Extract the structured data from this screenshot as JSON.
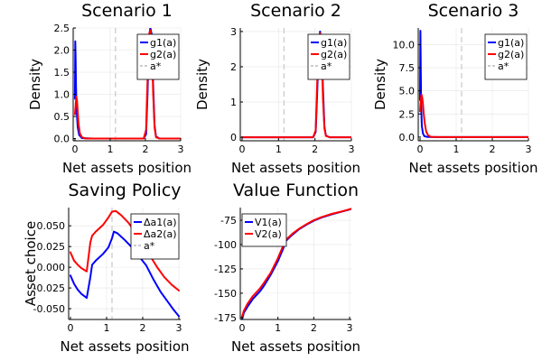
{
  "figure": {
    "background": "#ffffff"
  },
  "chart_data": [
    {
      "id": "p1",
      "type": "line",
      "title": "Scenario 1",
      "xlabel": "Net assets position",
      "ylabel": "Density",
      "xlim": [
        -0.05,
        3.0
      ],
      "ylim": [
        -0.05,
        2.5
      ],
      "xticks": [
        0,
        1,
        2,
        3
      ],
      "xticklabels": [
        "0",
        "1",
        "2",
        "3"
      ],
      "yticks": [
        0.0,
        0.5,
        1.0,
        1.5,
        2.0,
        2.5
      ],
      "yticklabels": [
        "0.0",
        "0.5",
        "1.0",
        "1.5",
        "2.0",
        "2.5"
      ],
      "grid": true,
      "legend_position": "top-right",
      "vline": {
        "label": "a*",
        "x": 1.15,
        "color": "#cccccc",
        "dashed": true
      },
      "series": [
        {
          "name": "g1(a)",
          "color": "#0000ff",
          "x": [
            0.0,
            0.01,
            0.02,
            0.03,
            0.05,
            0.08,
            0.12,
            0.2,
            0.5,
            1.0,
            1.5,
            1.95,
            2.02,
            2.06,
            2.1,
            2.14,
            2.18,
            2.22,
            2.26,
            2.3,
            2.4,
            2.6,
            3.0
          ],
          "y": [
            0.9,
            2.2,
            1.8,
            1.2,
            0.6,
            0.25,
            0.08,
            0.01,
            0.0,
            0.0,
            0.0,
            0.0,
            0.1,
            1.0,
            2.3,
            2.5,
            2.35,
            1.2,
            0.3,
            0.05,
            0.0,
            0.0,
            0.0
          ]
        },
        {
          "name": "g2(a)",
          "color": "#ff0000",
          "x": [
            0.0,
            0.02,
            0.04,
            0.06,
            0.08,
            0.1,
            0.14,
            0.2,
            0.3,
            0.5,
            1.0,
            1.5,
            1.95,
            2.02,
            2.06,
            2.1,
            2.14,
            2.18,
            2.22,
            2.26,
            2.3,
            2.4,
            2.6,
            3.0
          ],
          "y": [
            0.55,
            0.75,
            0.95,
            0.85,
            0.6,
            0.35,
            0.12,
            0.03,
            0.0,
            0.0,
            0.0,
            0.0,
            0.0,
            0.2,
            1.3,
            2.35,
            2.45,
            2.25,
            1.0,
            0.25,
            0.03,
            0.0,
            0.0,
            0.0
          ]
        }
      ]
    },
    {
      "id": "p2",
      "type": "line",
      "title": "Scenario 2",
      "xlabel": "Net assets position",
      "ylabel": "Density",
      "xlim": [
        -0.05,
        3.0
      ],
      "ylim": [
        -0.1,
        3.1
      ],
      "xticks": [
        0,
        1,
        2,
        3
      ],
      "xticklabels": [
        "0",
        "1",
        "2",
        "3"
      ],
      "yticks": [
        0,
        1,
        2,
        3
      ],
      "yticklabels": [
        "0",
        "1",
        "2",
        "3"
      ],
      "grid": true,
      "legend_position": "top-right",
      "vline": {
        "label": "a*",
        "x": 1.15,
        "color": "#cccccc",
        "dashed": true
      },
      "series": [
        {
          "name": "g1(a)",
          "color": "#0000ff",
          "x": [
            0.0,
            0.5,
            1.0,
            1.5,
            1.95,
            2.02,
            2.06,
            2.1,
            2.14,
            2.18,
            2.22,
            2.26,
            2.3,
            2.4,
            3.0
          ],
          "y": [
            0.0,
            0.0,
            0.0,
            0.0,
            0.0,
            0.15,
            1.2,
            2.6,
            3.0,
            2.7,
            1.4,
            0.3,
            0.05,
            0.0,
            0.0
          ]
        },
        {
          "name": "g2(a)",
          "color": "#ff0000",
          "x": [
            0.0,
            0.5,
            1.0,
            1.5,
            1.95,
            2.02,
            2.06,
            2.1,
            2.14,
            2.18,
            2.22,
            2.26,
            2.3,
            2.4,
            3.0
          ],
          "y": [
            0.0,
            0.0,
            0.0,
            0.0,
            0.0,
            0.2,
            1.5,
            2.8,
            2.95,
            2.6,
            1.1,
            0.25,
            0.04,
            0.0,
            0.0
          ]
        }
      ]
    },
    {
      "id": "p3",
      "type": "line",
      "title": "Scenario 3",
      "xlabel": "Net assets position",
      "ylabel": "Density",
      "xlim": [
        -0.05,
        3.0
      ],
      "ylim": [
        -0.4,
        11.8
      ],
      "xticks": [
        0,
        1,
        2,
        3
      ],
      "xticklabels": [
        "0",
        "1",
        "2",
        "3"
      ],
      "yticks": [
        0.0,
        2.5,
        5.0,
        7.5,
        10.0
      ],
      "yticklabels": [
        "0.0",
        "2.5",
        "5.0",
        "7.5",
        "10.0"
      ],
      "grid": true,
      "legend_position": "top-right",
      "vline": {
        "label": "a*",
        "x": 1.15,
        "color": "#cccccc",
        "dashed": true
      },
      "series": [
        {
          "name": "g1(a)",
          "color": "#0000ff",
          "x": [
            0.0,
            0.01,
            0.02,
            0.03,
            0.05,
            0.08,
            0.12,
            0.2,
            0.5,
            1.0,
            2.0,
            3.0
          ],
          "y": [
            4.0,
            11.5,
            7.5,
            3.5,
            1.2,
            0.4,
            0.1,
            0.02,
            0.0,
            0.0,
            0.0,
            0.0
          ]
        },
        {
          "name": "g2(a)",
          "color": "#ff0000",
          "x": [
            0.0,
            0.02,
            0.04,
            0.06,
            0.08,
            0.1,
            0.13,
            0.17,
            0.22,
            0.3,
            0.5,
            1.0,
            2.0,
            3.0
          ],
          "y": [
            2.8,
            4.0,
            4.6,
            4.3,
            3.6,
            2.6,
            1.5,
            0.6,
            0.2,
            0.03,
            0.0,
            0.0,
            0.0,
            0.0
          ]
        }
      ]
    },
    {
      "id": "p4",
      "type": "line",
      "title": "Saving Policy",
      "xlabel": "Net assets position",
      "ylabel": "Asset choice",
      "xlim": [
        -0.05,
        3.05
      ],
      "ylim": [
        -0.063,
        0.072
      ],
      "xticks": [
        0,
        1,
        2,
        3
      ],
      "xticklabels": [
        "0",
        "1",
        "2",
        "3"
      ],
      "yticks": [
        -0.05,
        -0.025,
        0.0,
        0.025,
        0.05
      ],
      "yticklabels": [
        "-0.050",
        "-0.025",
        "0.000",
        "0.025",
        "0.050"
      ],
      "grid": true,
      "legend_position": "top-right",
      "vline": {
        "label": "a*",
        "x": 1.15,
        "color": "#cccccc",
        "dashed": true
      },
      "series": [
        {
          "name": "Δa1(a)",
          "color": "#0000ff",
          "x": [
            0.0,
            0.1,
            0.2,
            0.3,
            0.45,
            0.55,
            0.6,
            0.7,
            0.9,
            1.05,
            1.15,
            1.2,
            1.3,
            1.5,
            1.7,
            1.9,
            2.1,
            2.3,
            2.5,
            2.7,
            2.85,
            3.0
          ],
          "y": [
            -0.01,
            -0.02,
            -0.027,
            -0.032,
            -0.037,
            -0.012,
            0.003,
            0.008,
            0.016,
            0.024,
            0.035,
            0.043,
            0.041,
            0.033,
            0.024,
            0.013,
            0.002,
            -0.015,
            -0.03,
            -0.042,
            -0.051,
            -0.059
          ]
        },
        {
          "name": "Δa2(a)",
          "color": "#ff0000",
          "x": [
            0.0,
            0.1,
            0.2,
            0.3,
            0.45,
            0.55,
            0.6,
            0.7,
            0.9,
            1.05,
            1.15,
            1.25,
            1.4,
            1.6,
            1.8,
            2.0,
            2.2,
            2.4,
            2.6,
            2.8,
            3.0
          ],
          "y": [
            0.018,
            0.008,
            0.003,
            -0.001,
            -0.005,
            0.03,
            0.038,
            0.043,
            0.051,
            0.06,
            0.067,
            0.068,
            0.063,
            0.054,
            0.042,
            0.03,
            0.014,
            0.0,
            -0.012,
            -0.021,
            -0.028
          ]
        }
      ]
    },
    {
      "id": "p5",
      "type": "line",
      "title": "Value Function",
      "xlabel": "Net assets position",
      "ylabel": "",
      "xlim": [
        -0.05,
        3.05
      ],
      "ylim": [
        -177,
        -62
      ],
      "xticks": [
        0,
        1,
        2,
        3
      ],
      "xticklabels": [
        "0",
        "1",
        "2",
        "3"
      ],
      "yticks": [
        -175,
        -150,
        -125,
        -100,
        -75
      ],
      "yticklabels": [
        "-175",
        "-150",
        "-125",
        "-100",
        "-75"
      ],
      "grid": true,
      "legend_position": "top-left",
      "series": [
        {
          "name": "V1(a)",
          "color": "#0000ff",
          "x": [
            0.0,
            0.05,
            0.15,
            0.3,
            0.5,
            0.6,
            0.8,
            1.0,
            1.15,
            1.2,
            1.4,
            1.6,
            1.8,
            2.0,
            2.2,
            2.5,
            2.8,
            3.05
          ],
          "y": [
            -177,
            -170,
            -164,
            -156,
            -148,
            -143,
            -131,
            -117,
            -104,
            -97,
            -90,
            -84,
            -79.5,
            -75.5,
            -72.5,
            -69,
            -66,
            -63.5
          ]
        },
        {
          "name": "V2(a)",
          "color": "#ff0000",
          "x": [
            0.0,
            0.05,
            0.15,
            0.3,
            0.5,
            0.6,
            0.8,
            1.0,
            1.15,
            1.2,
            1.4,
            1.6,
            1.8,
            2.0,
            2.2,
            2.5,
            2.8,
            3.05
          ],
          "y": [
            -174,
            -168,
            -161,
            -153,
            -145,
            -140,
            -129,
            -114,
            -101,
            -96,
            -89,
            -83.5,
            -79,
            -75,
            -72,
            -68.5,
            -65.8,
            -63.2
          ]
        }
      ]
    }
  ]
}
